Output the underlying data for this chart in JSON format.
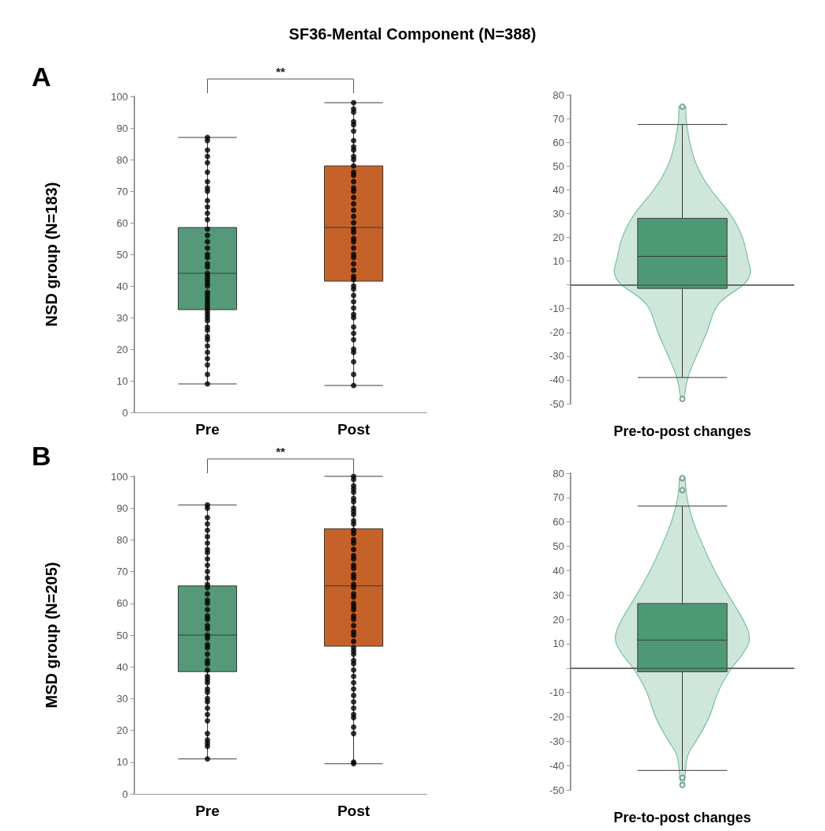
{
  "chart_data": [
    {
      "type": "box",
      "title": "SF36-Mental Component (N=388)",
      "ylabel": "NSD group (N=183)",
      "annotations": [
        "A",
        "**"
      ],
      "categories": [
        "Pre",
        "Post"
      ],
      "colors": [
        "#55997a",
        "#c4622a"
      ],
      "boxes": [
        {
          "low": 9,
          "q1": 32.5,
          "median": 44,
          "q3": 58.5,
          "high": 87
        },
        {
          "low": 8.5,
          "q1": 41.5,
          "median": 58.5,
          "q3": 78,
          "high": 98
        }
      ],
      "ylim": [
        0,
        100
      ],
      "yticks": [
        0,
        10,
        20,
        30,
        40,
        50,
        60,
        70,
        80,
        90,
        100
      ],
      "series": [
        {
          "type": "scatter",
          "marker": "circle",
          "color": "#000000",
          "x": [
            "Pre",
            "Pre",
            "Pre",
            "Pre",
            "Pre",
            "Pre",
            "Pre",
            "Pre",
            "Pre",
            "Pre",
            "Pre",
            "Pre",
            "Pre",
            "Pre",
            "Pre",
            "Pre",
            "Pre",
            "Pre",
            "Pre",
            "Pre",
            "Pre",
            "Pre",
            "Pre",
            "Pre",
            "Pre",
            "Pre",
            "Pre",
            "Pre",
            "Pre",
            "Pre",
            "Pre",
            "Pre",
            "Pre",
            "Pre",
            "Pre",
            "Pre",
            "Pre",
            "Pre",
            "Pre",
            "Pre",
            "Pre",
            "Pre",
            "Pre",
            "Pre",
            "Pre",
            "Pre"
          ],
          "values": [
            87,
            86,
            83,
            81,
            79,
            76,
            73,
            71,
            70,
            67,
            65,
            63,
            61,
            58,
            56,
            54,
            52,
            50,
            49,
            47,
            46,
            44,
            43,
            42,
            41,
            40,
            38,
            37,
            36,
            35,
            34,
            33,
            32,
            31,
            30,
            29,
            27,
            26,
            24,
            23,
            21,
            19,
            17,
            15,
            12,
            9
          ]
        },
        {
          "type": "scatter",
          "marker": "circle",
          "color": "#000000",
          "x": [
            "Post",
            "Post",
            "Post",
            "Post",
            "Post",
            "Post",
            "Post",
            "Post",
            "Post",
            "Post",
            "Post",
            "Post",
            "Post",
            "Post",
            "Post",
            "Post",
            "Post",
            "Post",
            "Post",
            "Post",
            "Post",
            "Post",
            "Post",
            "Post",
            "Post",
            "Post",
            "Post",
            "Post",
            "Post",
            "Post",
            "Post",
            "Post",
            "Post",
            "Post",
            "Post",
            "Post",
            "Post",
            "Post",
            "Post",
            "Post",
            "Post",
            "Post",
            "Post",
            "Post",
            "Post",
            "Post",
            "Post",
            "Post"
          ],
          "values": [
            98,
            96,
            95,
            92,
            91,
            89,
            86,
            84,
            83,
            81,
            80,
            78,
            76,
            75,
            73,
            71,
            70,
            68,
            66,
            64,
            62,
            60,
            58,
            57,
            55,
            54,
            52,
            50,
            49,
            47,
            45,
            43,
            42,
            40,
            39,
            37,
            35,
            33,
            31,
            30,
            27,
            25,
            23,
            20,
            19,
            16,
            12,
            8.5
          ]
        }
      ]
    },
    {
      "type": "box",
      "xlabel": "Pre-to-post changes",
      "categories": [
        null
      ],
      "colors": [
        "#4f9a76"
      ],
      "boxes": [
        {
          "low": -39,
          "q1": -1.5,
          "median": 12,
          "q3": 28,
          "high": 67.5,
          "outliers": [
            75,
            -48
          ]
        }
      ],
      "ylim": [
        -50,
        80
      ],
      "yticks": [
        -50,
        -40,
        -30,
        -20,
        -10,
        {
          "value": 0,
          "label": null
        },
        10,
        20,
        30,
        40,
        50,
        60,
        70,
        80
      ],
      "ref_lines": [
        {
          "axis": "y",
          "value": 0,
          "color": "#555555"
        }
      ]
    },
    {
      "type": "box",
      "ylabel": "MSD group (N=205)",
      "annotations": [
        "B",
        "**"
      ],
      "categories": [
        "Pre",
        "Post"
      ],
      "colors": [
        "#55997a",
        "#c4622a"
      ],
      "boxes": [
        {
          "low": 11,
          "q1": 38.5,
          "median": 50,
          "q3": 65.5,
          "high": 91
        },
        {
          "low": 9.5,
          "q1": 46.5,
          "median": 65.5,
          "q3": 83.5,
          "high": 100
        }
      ],
      "ylim": [
        0,
        100
      ],
      "yticks": [
        0,
        10,
        20,
        30,
        40,
        50,
        60,
        70,
        80,
        90,
        100
      ],
      "series": [
        {
          "type": "scatter",
          "marker": "circle",
          "color": "#000000",
          "x": [
            "Pre",
            "Pre",
            "Pre",
            "Pre",
            "Pre",
            "Pre",
            "Pre",
            "Pre",
            "Pre",
            "Pre",
            "Pre",
            "Pre",
            "Pre",
            "Pre",
            "Pre",
            "Pre",
            "Pre",
            "Pre",
            "Pre",
            "Pre",
            "Pre",
            "Pre",
            "Pre",
            "Pre",
            "Pre",
            "Pre",
            "Pre",
            "Pre",
            "Pre",
            "Pre",
            "Pre",
            "Pre",
            "Pre",
            "Pre",
            "Pre",
            "Pre",
            "Pre",
            "Pre",
            "Pre",
            "Pre",
            "Pre",
            "Pre",
            "Pre",
            "Pre",
            "Pre",
            "Pre"
          ],
          "values": [
            91,
            90,
            87,
            85,
            83,
            81,
            79,
            77,
            76,
            74,
            72,
            70,
            68,
            66,
            65,
            63,
            61,
            60,
            58,
            56,
            55,
            53,
            52,
            50,
            49,
            47,
            46,
            44,
            42,
            41,
            39,
            37,
            36,
            35,
            33,
            32,
            30,
            29,
            27,
            25,
            23,
            19,
            17,
            16,
            15,
            11
          ]
        },
        {
          "type": "scatter",
          "marker": "circle",
          "color": "#000000",
          "x": [
            "Post",
            "Post",
            "Post",
            "Post",
            "Post",
            "Post",
            "Post",
            "Post",
            "Post",
            "Post",
            "Post",
            "Post",
            "Post",
            "Post",
            "Post",
            "Post",
            "Post",
            "Post",
            "Post",
            "Post",
            "Post",
            "Post",
            "Post",
            "Post",
            "Post",
            "Post",
            "Post",
            "Post",
            "Post",
            "Post",
            "Post",
            "Post",
            "Post",
            "Post",
            "Post",
            "Post",
            "Post",
            "Post",
            "Post",
            "Post",
            "Post",
            "Post",
            "Post",
            "Post",
            "Post",
            "Post",
            "Post",
            "Post",
            "Post",
            "Post",
            "Post",
            "Post",
            "Post",
            "Post"
          ],
          "values": [
            100,
            99,
            97,
            96,
            95,
            93,
            92,
            90,
            89,
            88,
            86,
            85,
            83,
            82,
            80,
            79,
            77,
            75,
            74,
            72,
            71,
            69,
            68,
            66,
            65,
            63,
            62,
            60,
            59,
            58,
            56,
            55,
            53,
            51,
            50,
            48,
            46,
            45,
            44,
            42,
            41,
            39,
            37,
            35,
            33,
            31,
            29,
            27,
            25,
            24,
            21,
            19,
            10,
            9.5
          ]
        }
      ]
    },
    {
      "type": "box",
      "xlabel": "Pre-to-post changes",
      "categories": [
        null
      ],
      "colors": [
        "#4f9a76"
      ],
      "boxes": [
        {
          "low": -42,
          "q1": -1.5,
          "median": 11.5,
          "q3": 26.5,
          "high": 66.5,
          "outliers": [
            78,
            73,
            -45,
            -48
          ]
        }
      ],
      "ylim": [
        -50,
        80
      ],
      "yticks": [
        -50,
        -40,
        -30,
        -20,
        -10,
        {
          "value": 0,
          "label": null
        },
        10,
        20,
        30,
        40,
        50,
        60,
        70,
        80
      ],
      "ref_lines": [
        {
          "axis": "y",
          "value": 0,
          "color": "#555555"
        }
      ]
    }
  ]
}
